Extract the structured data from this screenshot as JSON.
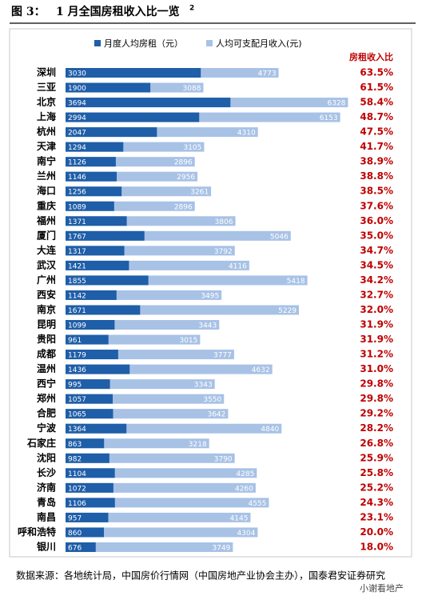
{
  "header": {
    "label": "图 3：",
    "title": "1 月全国房租收入比一览",
    "footnote_mark": "2"
  },
  "chart_data": {
    "type": "bar",
    "orientation": "horizontal",
    "categories": [
      "深圳",
      "三亚",
      "北京",
      "上海",
      "杭州",
      "天津",
      "南宁",
      "兰州",
      "海口",
      "重庆",
      "福州",
      "厦门",
      "大连",
      "武汉",
      "广州",
      "西安",
      "南京",
      "昆明",
      "贵阳",
      "成都",
      "温州",
      "西宁",
      "郑州",
      "合肥",
      "宁波",
      "石家庄",
      "沈阳",
      "长沙",
      "济南",
      "青岛",
      "南昌",
      "呼和浩特",
      "银川"
    ],
    "series": [
      {
        "name": "月度人均房租（元）",
        "color": "#1f5ea8",
        "values": [
          3030,
          1900,
          3694,
          2994,
          2047,
          1294,
          1126,
          1146,
          1256,
          1089,
          1371,
          1767,
          1317,
          1421,
          1855,
          1142,
          1671,
          1099,
          961,
          1179,
          1436,
          995,
          1057,
          1065,
          1364,
          863,
          982,
          1104,
          1072,
          1106,
          957,
          860,
          676
        ]
      },
      {
        "name": "人均可支配月收入(元)",
        "color": "#a8c2e6",
        "values": [
          4773,
          3088,
          6328,
          6153,
          4310,
          3105,
          2896,
          2956,
          3261,
          2896,
          3806,
          5046,
          3792,
          4116,
          5418,
          3495,
          5229,
          3443,
          3015,
          3777,
          4632,
          3343,
          3550,
          3642,
          4840,
          3218,
          3790,
          4285,
          4260,
          4555,
          4145,
          4304,
          3749
        ]
      }
    ],
    "xlim": [
      0,
      6500
    ],
    "ratio_column": {
      "title": "房租收入比",
      "color": "#c00000",
      "values": [
        63.5,
        61.5,
        58.4,
        48.7,
        47.5,
        41.7,
        38.9,
        38.8,
        38.5,
        37.6,
        36.0,
        35.0,
        34.7,
        34.5,
        34.2,
        32.7,
        32.0,
        31.9,
        31.9,
        31.2,
        31.0,
        29.8,
        29.8,
        29.2,
        28.2,
        26.8,
        25.9,
        25.8,
        25.2,
        24.3,
        23.1,
        20.0,
        18.0
      ],
      "value_labels": [
        "63.5%",
        "61.5%",
        "58.4%",
        "48.7%",
        "47.5%",
        "41.7%",
        "38.9%",
        "38.8%",
        "38.5%",
        "37.6%",
        "36.0%",
        "35.0%",
        "34.7%",
        "34.5%",
        "34.2%",
        "32.7%",
        "32.0%",
        "31.9%",
        "31.9%",
        "31.2%",
        "31.0%",
        "29.8%",
        "29.8%",
        "29.2%",
        "28.2%",
        "26.8%",
        "25.9%",
        "25.8%",
        "25.2%",
        "24.3%",
        "23.1%",
        "20.0%",
        "18.0%"
      ]
    }
  },
  "source": "数据来源：各地统计局，中国房价行情网（中国房地产业协会主办），国泰君安证券研究",
  "watermark": "小谢看地产"
}
